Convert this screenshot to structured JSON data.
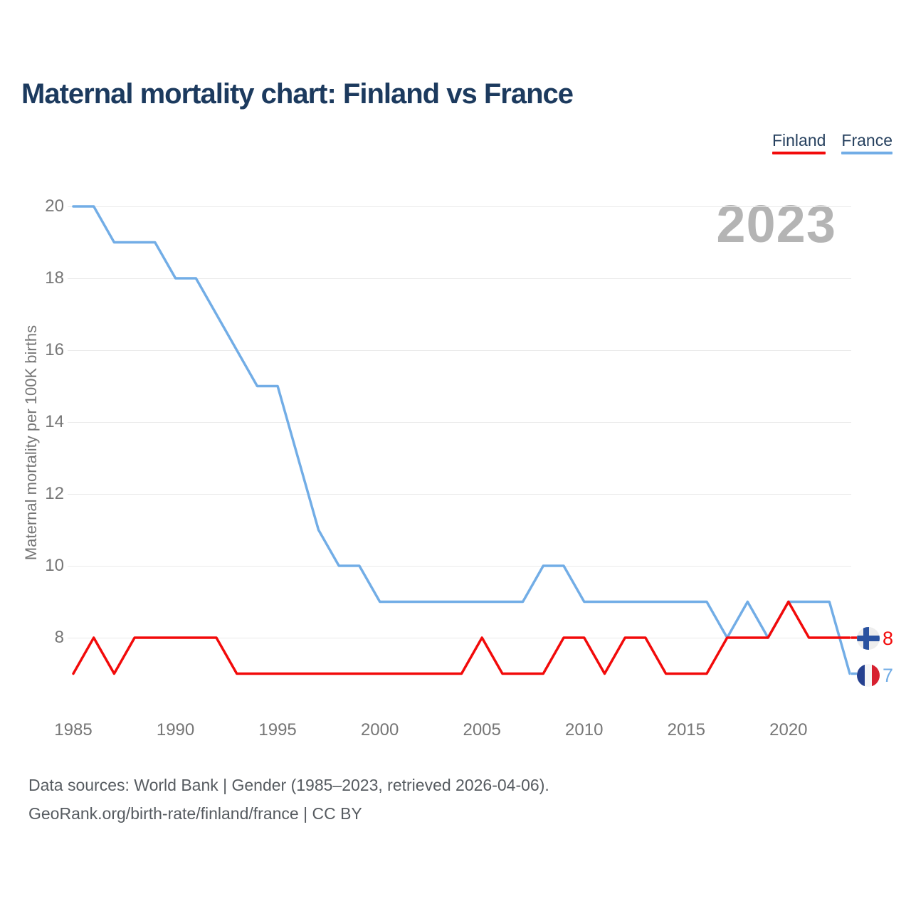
{
  "page": {
    "title": "Maternal mortality chart: Finland vs France",
    "watermark": "2023"
  },
  "legend": {
    "items": [
      {
        "label": "Finland",
        "color": "#f20a0a"
      },
      {
        "label": "France",
        "color": "#72ade6"
      }
    ]
  },
  "chart_data": {
    "type": "line",
    "title": "Maternal mortality chart: Finland vs France",
    "xlabel": "",
    "ylabel": "Maternal mortality per 100K births",
    "grid": "horizontal",
    "legend_position": "top-right",
    "x_ticks": [
      1985,
      1990,
      1995,
      2000,
      2005,
      2010,
      2015,
      2020
    ],
    "y_ticks": [
      20,
      18,
      16,
      14,
      12,
      10,
      8
    ],
    "ylim": [
      6.5,
      20.5
    ],
    "x": [
      1985,
      1986,
      1987,
      1988,
      1989,
      1990,
      1991,
      1992,
      1993,
      1994,
      1995,
      1996,
      1997,
      1998,
      1999,
      2000,
      2001,
      2002,
      2003,
      2004,
      2005,
      2006,
      2007,
      2008,
      2009,
      2010,
      2011,
      2012,
      2013,
      2014,
      2015,
      2016,
      2017,
      2018,
      2019,
      2020,
      2021,
      2022,
      2023
    ],
    "series": [
      {
        "name": "France",
        "color": "#72ade6",
        "values": [
          20,
          20,
          19,
          19,
          19,
          18,
          18,
          17,
          16,
          15,
          15,
          13,
          11,
          10,
          10,
          9,
          9,
          9,
          9,
          9,
          9,
          9,
          9,
          10,
          10,
          9,
          9,
          9,
          9,
          9,
          9,
          9,
          8,
          9,
          8,
          9,
          9,
          9,
          7
        ]
      },
      {
        "name": "Finland",
        "color": "#f20a0a",
        "values": [
          7,
          8,
          7,
          8,
          8,
          8,
          8,
          8,
          7,
          7,
          7,
          7,
          7,
          7,
          7,
          7,
          7,
          7,
          7,
          7,
          8,
          7,
          7,
          7,
          8,
          8,
          7,
          8,
          8,
          7,
          7,
          7,
          8,
          8,
          8,
          9,
          8,
          8,
          8
        ]
      }
    ],
    "end_labels": [
      {
        "series": "Finland",
        "text": "8",
        "flag": "finland-flag-icon"
      },
      {
        "series": "France",
        "text": "7",
        "flag": "france-flag-icon"
      }
    ]
  },
  "footer": {
    "line1": "Data sources: World Bank | Gender (1985–2023, retrieved 2026-04-06).",
    "line2": "GeoRank.org/birth-rate/finland/france | CC BY"
  }
}
